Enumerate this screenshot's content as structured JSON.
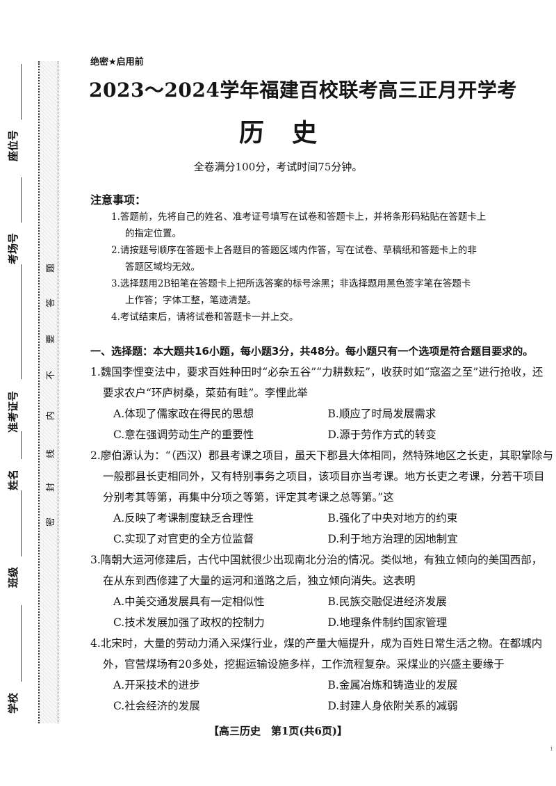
{
  "header": {
    "secret": "绝密★启用前",
    "title": "2023～2024学年福建百校联考高三正月开学考",
    "subject": "历史",
    "info": "全卷满分100分，考试时间75分钟。"
  },
  "notes": {
    "heading": "注意事项：",
    "lines": [
      "1.答题前，先将自己的姓名、准考证号填写在试卷和答题卡上，并将条形码粘贴在答题卡上",
      "的指定位置。",
      "2.请按题号顺序在答题卡上各题目的答题区域内作答，写在试卷、草稿纸和答题卡上的非",
      "答题区域均无效。",
      "3.选择题用2B铅笔在答题卡上把所选答案的标号涂黑；非选择题用黑色签字笔在答题卡",
      "上作答；字体工整，笔迹清楚。",
      "4.考试结束后，请将试卷和答题卡一并上交。"
    ]
  },
  "section": "一、选择题：本大题共16小题，每小题3分，共48分。每小题只有一个选项是符合题目要求的。",
  "questions": [
    {
      "lines": [
        "1.魏国李悝变法中，要求百姓种田时“必杂五谷”“力耕数耘”，收获时如“寇盗之至”进行抢收，还",
        "要求农户“环庐树桑，菜茹有畦”。李悝此举"
      ],
      "options": [
        "A.体现了儒家政在得民的思想",
        "B.顺应了时局发展需求",
        "C.意在强调劳动生产的重要性",
        "D.源于劳作方式的转变"
      ]
    },
    {
      "lines": [
        "2.廖伯源认为：“（西汉）郡县考课之项目，虽天下郡县大体相同，然特殊地区之长吏，其职掌除与",
        "一般郡县长吏相同外，又有特别事务之项目，该项目亦当考课。地方长吏之考课，分若干项目",
        "分别考其等第，再集中分项之等第，评定其考课之总等第。”这"
      ],
      "options": [
        "A.反映了考课制度缺乏合理性",
        "B.强化了中央对地方的约束",
        "C.实现了对官吏的全方位监督",
        "D.利于地方治理的因地制宜"
      ]
    },
    {
      "lines": [
        "3.隋朝大运河修建后，古代中国就很少出现南北分治的情况。类似地，有独立倾向的美国西部，",
        "在从东到西修建了大量的运河和道路之后，独立倾向消失。这表明"
      ],
      "options": [
        "A.中美交通发展具有一定相似性",
        "B.民族交融促进经济发展",
        "C.技术发展加强了政权的控制力",
        "D.地理条件制约国家管理"
      ]
    },
    {
      "lines": [
        "4.北宋时，大量的劳动力涌入采煤行业，煤的产量大幅提升，成为百姓日常生活之物。在都城内",
        "外，官营煤场有20多处，挖掘运输设施多样，工作流程复杂。采煤业的兴盛主要缘于"
      ],
      "options": [
        "A.开采技术的进步",
        "B.金属冶炼和铸造业的发展",
        "C.社会经济的发展",
        "D.封建人身依附关系的减弱"
      ]
    }
  ],
  "footer": "【高三历史　第1页(共6页)】",
  "corner_mark": "i",
  "sidebar": {
    "fields": [
      "学校",
      "班级",
      "姓名",
      "准考证号",
      "考场号",
      "座位号"
    ],
    "seal_text": [
      "密",
      "封",
      "线",
      "内",
      "不",
      "要",
      "答",
      "题"
    ]
  }
}
